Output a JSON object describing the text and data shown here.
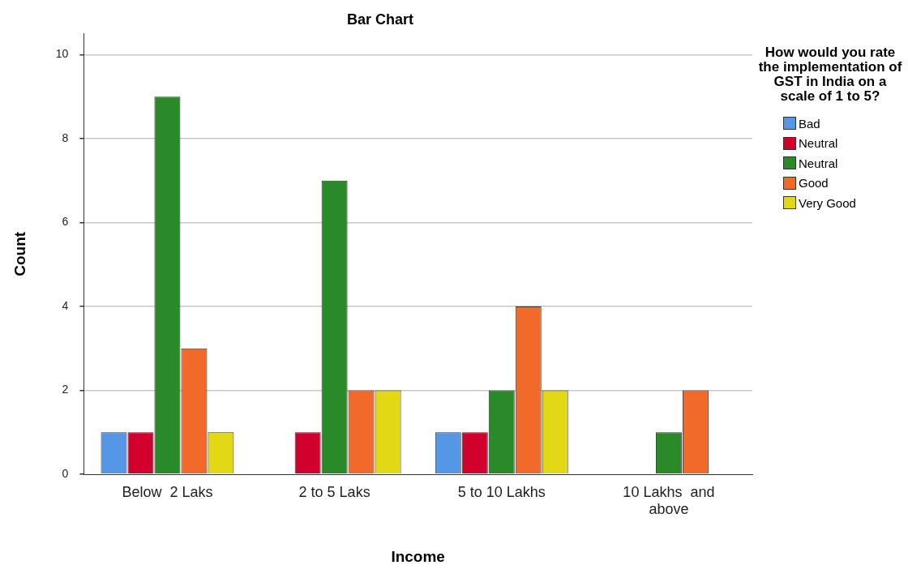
{
  "chart_data": {
    "type": "bar",
    "title": "Bar Chart",
    "xlabel": "Income",
    "ylabel": "Count",
    "legend_title": "How would you rate the implementation of GST in India on a scale of 1 to 5?",
    "categories": [
      "Below  2 Laks",
      "2 to 5 Laks",
      "5 to 10 Lakhs",
      "10 Lakhs  and above"
    ],
    "series": [
      {
        "name": "Bad",
        "color": "#5596e6",
        "values": [
          1,
          null,
          1,
          null
        ]
      },
      {
        "name": "Neutral",
        "color": "#d2002d",
        "values": [
          1,
          1,
          1,
          null
        ]
      },
      {
        "name": "Neutral",
        "color": "#2a8a2a",
        "values": [
          9,
          7,
          2,
          1
        ]
      },
      {
        "name": "Good",
        "color": "#f26a2a",
        "values": [
          3,
          2,
          4,
          2
        ]
      },
      {
        "name": "Very Good",
        "color": "#e2d815",
        "values": [
          1,
          2,
          2,
          null
        ]
      }
    ],
    "ylim": [
      0,
      10.5
    ],
    "yticks": [
      0,
      2,
      4,
      6,
      8,
      10
    ],
    "grid": "y",
    "legend": "right"
  }
}
